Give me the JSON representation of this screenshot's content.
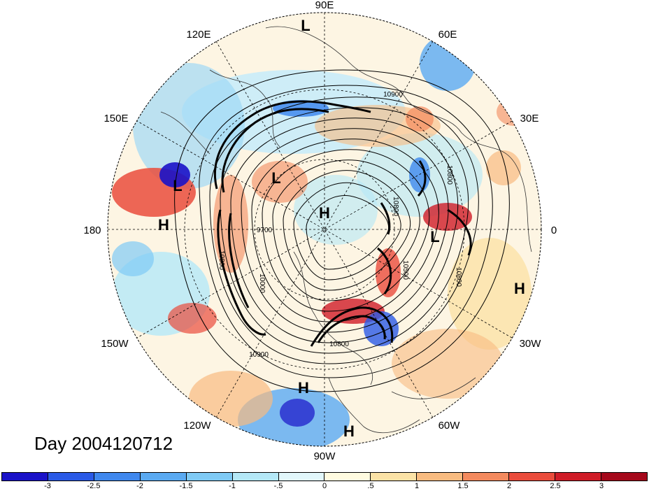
{
  "map": {
    "title": "Day 2004120712",
    "projection": "north-polar-stereographic",
    "longitude_labels": [
      "90E",
      "60E",
      "30E",
      "0",
      "30W",
      "60W",
      "90W",
      "120W",
      "150W",
      "180",
      "150E",
      "120E"
    ],
    "contour_labels": [
      "10900",
      "10800",
      "10800",
      "10500",
      "10800",
      "10800",
      "10800",
      "10900",
      "9700",
      "10000"
    ],
    "pressure_centers": [
      {
        "id": "L1",
        "label": "L"
      },
      {
        "id": "L2",
        "label": "L"
      },
      {
        "id": "L3",
        "label": "L"
      },
      {
        "id": "L4",
        "label": "L"
      },
      {
        "id": "H1",
        "label": "H"
      },
      {
        "id": "H2",
        "label": "H"
      },
      {
        "id": "H3",
        "label": "H"
      },
      {
        "id": "H4",
        "label": "H"
      },
      {
        "id": "H5",
        "label": "H"
      }
    ]
  },
  "colorbar": {
    "colors": [
      "#1a12c8",
      "#2a5ae6",
      "#3f88ee",
      "#5aaaf2",
      "#7fcaf5",
      "#b4e8f7",
      "#e2f7fb",
      "#fffbe0",
      "#fbe2a6",
      "#f8bb80",
      "#f38a5e",
      "#ea4c3c",
      "#cf1c27",
      "#a5081b"
    ],
    "tick_labels": [
      "-3",
      "-2.5",
      "-2",
      "-1.5",
      "-1",
      "-.5",
      "0",
      ".5",
      "1",
      "1.5",
      "2",
      "2.5",
      "3"
    ]
  }
}
